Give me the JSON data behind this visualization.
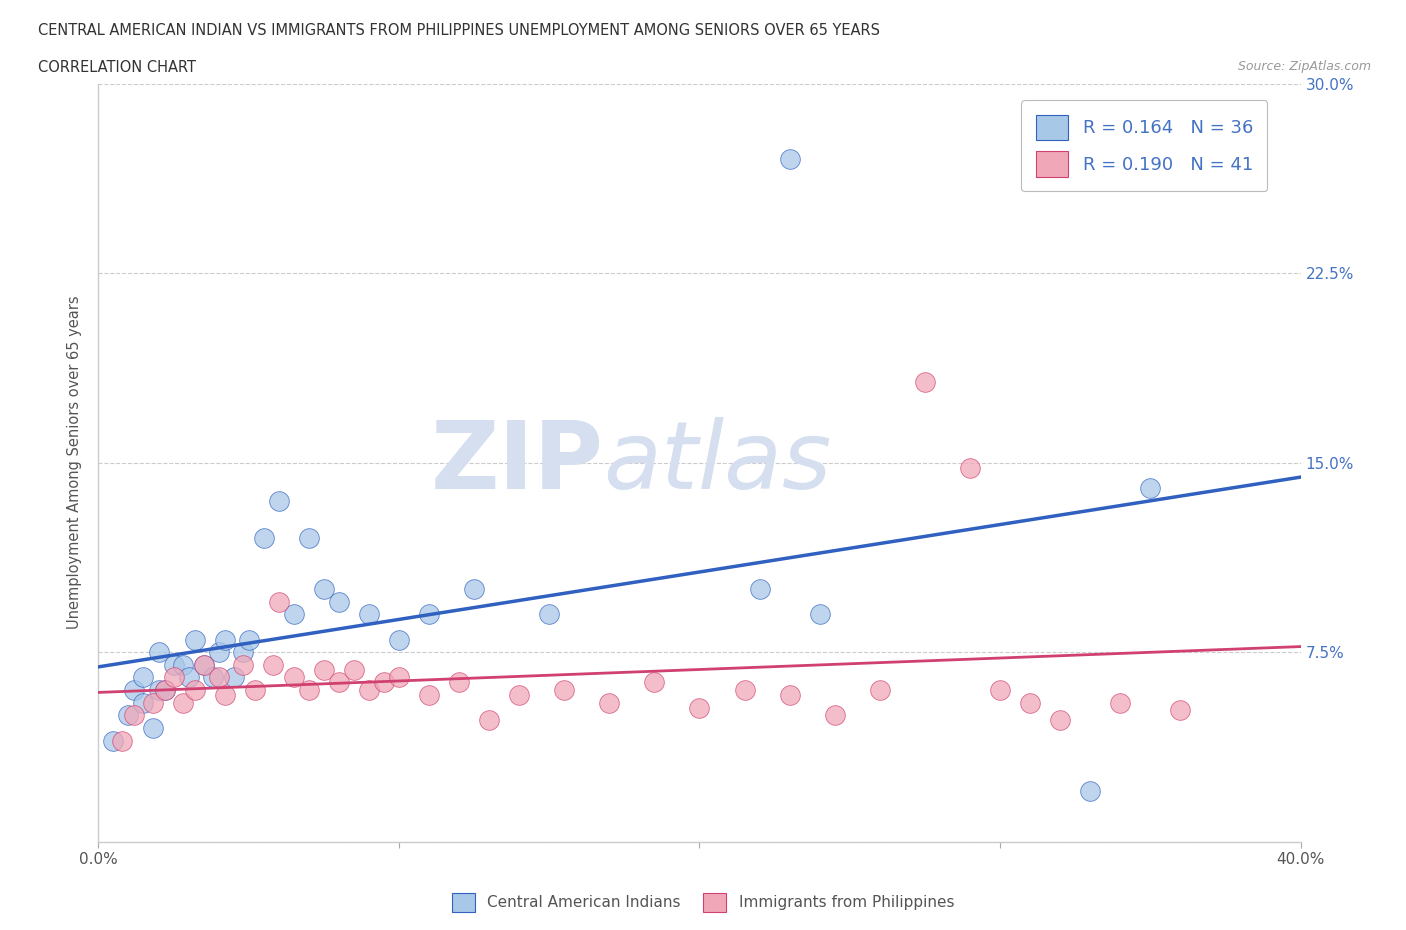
{
  "title_line1": "CENTRAL AMERICAN INDIAN VS IMMIGRANTS FROM PHILIPPINES UNEMPLOYMENT AMONG SENIORS OVER 65 YEARS",
  "title_line2": "CORRELATION CHART",
  "source_text": "Source: ZipAtlas.com",
  "ylabel": "Unemployment Among Seniors over 65 years",
  "xlim": [
    0.0,
    0.4
  ],
  "ylim": [
    0.0,
    0.3
  ],
  "xticks": [
    0.0,
    0.1,
    0.2,
    0.3,
    0.4
  ],
  "yticks": [
    0.0,
    0.075,
    0.15,
    0.225,
    0.3
  ],
  "color_blue": "#A8C8E8",
  "color_pink": "#F0A8B8",
  "color_blue_line": "#3060C0",
  "color_pink_line": "#D04070",
  "watermark_zip": "ZIP",
  "watermark_atlas": "atlas",
  "watermark_color": "#D5DFF0",
  "blue_scatter_x": [
    0.005,
    0.01,
    0.012,
    0.015,
    0.015,
    0.018,
    0.02,
    0.02,
    0.022,
    0.025,
    0.028,
    0.03,
    0.032,
    0.035,
    0.038,
    0.04,
    0.042,
    0.045,
    0.048,
    0.05,
    0.055,
    0.06,
    0.065,
    0.07,
    0.075,
    0.08,
    0.09,
    0.1,
    0.11,
    0.125,
    0.15,
    0.22,
    0.23,
    0.24,
    0.33,
    0.35
  ],
  "blue_scatter_y": [
    0.04,
    0.05,
    0.06,
    0.055,
    0.065,
    0.045,
    0.06,
    0.075,
    0.06,
    0.07,
    0.07,
    0.065,
    0.08,
    0.07,
    0.065,
    0.075,
    0.08,
    0.065,
    0.075,
    0.08,
    0.12,
    0.135,
    0.09,
    0.12,
    0.1,
    0.095,
    0.09,
    0.08,
    0.09,
    0.1,
    0.09,
    0.1,
    0.27,
    0.09,
    0.02,
    0.14
  ],
  "pink_scatter_x": [
    0.008,
    0.012,
    0.018,
    0.022,
    0.025,
    0.028,
    0.032,
    0.035,
    0.04,
    0.042,
    0.048,
    0.052,
    0.058,
    0.06,
    0.065,
    0.07,
    0.075,
    0.08,
    0.085,
    0.09,
    0.095,
    0.1,
    0.11,
    0.12,
    0.13,
    0.14,
    0.155,
    0.17,
    0.185,
    0.2,
    0.215,
    0.23,
    0.245,
    0.26,
    0.275,
    0.29,
    0.3,
    0.31,
    0.32,
    0.34,
    0.36
  ],
  "pink_scatter_y": [
    0.04,
    0.05,
    0.055,
    0.06,
    0.065,
    0.055,
    0.06,
    0.07,
    0.065,
    0.058,
    0.07,
    0.06,
    0.07,
    0.095,
    0.065,
    0.06,
    0.068,
    0.063,
    0.068,
    0.06,
    0.063,
    0.065,
    0.058,
    0.063,
    0.048,
    0.058,
    0.06,
    0.055,
    0.063,
    0.053,
    0.06,
    0.058,
    0.05,
    0.06,
    0.182,
    0.148,
    0.06,
    0.055,
    0.048,
    0.055,
    0.052
  ]
}
